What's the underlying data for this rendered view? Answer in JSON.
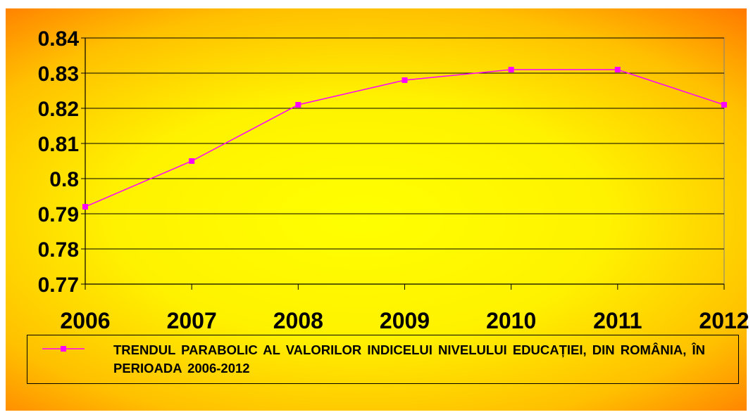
{
  "chart_data": {
    "type": "line",
    "categories": [
      "2006",
      "2007",
      "2008",
      "2009",
      "2010",
      "2011",
      "2012"
    ],
    "series": [
      {
        "name": "TRENDUL PARABOLIC AL VALORILOR INDICELUI NIVELULUI EDUCAȚIEI, DIN ROMÂNIA, ÎN PERIOADA 2006-2012",
        "values": [
          0.792,
          0.805,
          0.821,
          0.828,
          0.831,
          0.831,
          0.821
        ],
        "color": "#ff00ff"
      }
    ],
    "y_ticks": [
      "0.77",
      "0.78",
      "0.79",
      "0.8",
      "0.81",
      "0.82",
      "0.83",
      "0.84"
    ],
    "ylim": [
      0.77,
      0.84
    ],
    "title": "",
    "xlabel": "",
    "ylabel": "",
    "grid": "horizontal",
    "legend_position": "bottom"
  }
}
